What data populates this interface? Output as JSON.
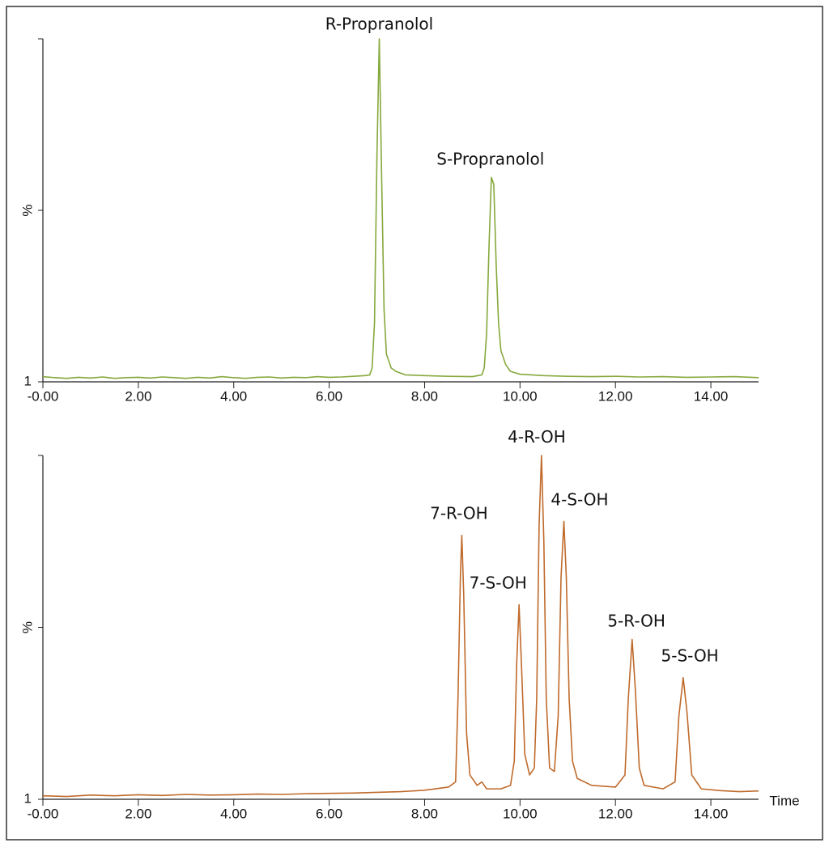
{
  "chart_data": [
    {
      "type": "line",
      "y_label": "%",
      "xlim": [
        0,
        15
      ],
      "xticks": [
        {
          "value": 0,
          "label": "-0.00"
        },
        {
          "value": 2,
          "label": "2.00"
        },
        {
          "value": 4,
          "label": "4.00"
        },
        {
          "value": 6,
          "label": "6.00"
        },
        {
          "value": 8,
          "label": "8.00"
        },
        {
          "value": 10,
          "label": "10.00"
        },
        {
          "value": 12,
          "label": "12.00"
        },
        {
          "value": 14,
          "label": "14.00"
        }
      ],
      "ylim": [
        1,
        100
      ],
      "yticks": [
        1
      ],
      "series": [
        {
          "color": "#86a83c",
          "x": [
            0,
            0.25,
            0.5,
            0.75,
            1,
            1.25,
            1.5,
            1.75,
            2,
            2.25,
            2.5,
            2.75,
            3,
            3.25,
            3.5,
            3.75,
            4,
            4.25,
            4.5,
            4.75,
            5,
            5.25,
            5.5,
            5.75,
            6,
            6.25,
            6.5,
            6.75,
            6.85,
            6.9,
            6.95,
            7.0,
            7.05,
            7.1,
            7.15,
            7.2,
            7.3,
            7.4,
            7.6,
            8,
            8.5,
            9,
            9.2,
            9.25,
            9.3,
            9.35,
            9.4,
            9.45,
            9.5,
            9.55,
            9.6,
            9.7,
            9.8,
            10,
            10.5,
            11,
            11.5,
            12,
            12.5,
            13,
            13.5,
            14,
            14.5,
            15
          ],
          "values": [
            2.5,
            2.2,
            2.0,
            2.3,
            2.1,
            2.4,
            2.0,
            2.2,
            2.3,
            2.1,
            2.4,
            2.2,
            2.0,
            2.3,
            2.1,
            2.5,
            2.2,
            2.0,
            2.3,
            2.4,
            2.1,
            2.3,
            2.2,
            2.5,
            2.3,
            2.4,
            2.6,
            2.8,
            3,
            5,
            18,
            65,
            100,
            60,
            22,
            9,
            5,
            4,
            3,
            2.8,
            2.6,
            2.5,
            3,
            5,
            15,
            40,
            60,
            58,
            35,
            18,
            10,
            6,
            4,
            3.2,
            2.8,
            2.6,
            2.5,
            2.6,
            2.4,
            2.5,
            2.3,
            2.4,
            2.5,
            2.2
          ]
        }
      ],
      "annotations": [
        {
          "text": "R-Propranolol",
          "x": 7.05,
          "y": 104
        },
        {
          "text": "S-Propranolol",
          "x": 9.38,
          "y": 65
        }
      ]
    },
    {
      "type": "line",
      "y_label": "%",
      "x_label": "Time",
      "xlim": [
        0,
        15
      ],
      "xticks": [
        {
          "value": 0,
          "label": "-0.00"
        },
        {
          "value": 2,
          "label": "2.00"
        },
        {
          "value": 4,
          "label": "4.00"
        },
        {
          "value": 6,
          "label": "6.00"
        },
        {
          "value": 8,
          "label": "8.00"
        },
        {
          "value": 10,
          "label": "10.00"
        },
        {
          "value": 12,
          "label": "12.00"
        },
        {
          "value": 14,
          "label": "14.00"
        }
      ],
      "ylim": [
        1,
        100
      ],
      "yticks": [
        1
      ],
      "series": [
        {
          "color": "#c06a2b",
          "x": [
            0,
            0.5,
            1,
            1.5,
            2,
            2.5,
            3,
            3.5,
            4,
            4.5,
            5,
            5.5,
            6,
            6.5,
            7,
            7.5,
            8,
            8.5,
            8.65,
            8.7,
            8.75,
            8.78,
            8.82,
            8.88,
            8.95,
            9.1,
            9.2,
            9.3,
            9.6,
            9.8,
            9.88,
            9.93,
            9.98,
            10.03,
            10.1,
            10.2,
            10.3,
            10.35,
            10.4,
            10.45,
            10.5,
            10.55,
            10.62,
            10.72,
            10.8,
            10.86,
            10.92,
            10.97,
            11.03,
            11.1,
            11.2,
            11.5,
            12,
            12.2,
            12.27,
            12.35,
            12.42,
            12.5,
            12.6,
            13,
            13.25,
            13.33,
            13.42,
            13.5,
            13.6,
            13.8,
            14.2,
            14.6,
            15
          ],
          "values": [
            2.0,
            1.8,
            2.2,
            2.0,
            2.3,
            2.1,
            2.4,
            2.2,
            2.3,
            2.5,
            2.4,
            2.6,
            2.7,
            2.8,
            3.0,
            3.2,
            3.6,
            4.5,
            6,
            30,
            65,
            77,
            60,
            20,
            8,
            5,
            6,
            4,
            4,
            5,
            12,
            40,
            57,
            40,
            14,
            8,
            10,
            30,
            80,
            100,
            75,
            30,
            10,
            9,
            25,
            65,
            81,
            65,
            30,
            12,
            7,
            5,
            4.5,
            8,
            30,
            47,
            32,
            10,
            5,
            4,
            6,
            25,
            36,
            26,
            8,
            4,
            3.5,
            3.2,
            3.4
          ]
        }
      ],
      "annotations": [
        {
          "text": "4-R-OH",
          "x": 10.35,
          "y": 105
        },
        {
          "text": "7-R-OH",
          "x": 8.72,
          "y": 83
        },
        {
          "text": "4-S-OH",
          "x": 11.25,
          "y": 87
        },
        {
          "text": "7-S-OH",
          "x": 9.54,
          "y": 63
        },
        {
          "text": "5-R-OH",
          "x": 12.44,
          "y": 52
        },
        {
          "text": "5-S-OH",
          "x": 13.56,
          "y": 42
        }
      ]
    }
  ]
}
